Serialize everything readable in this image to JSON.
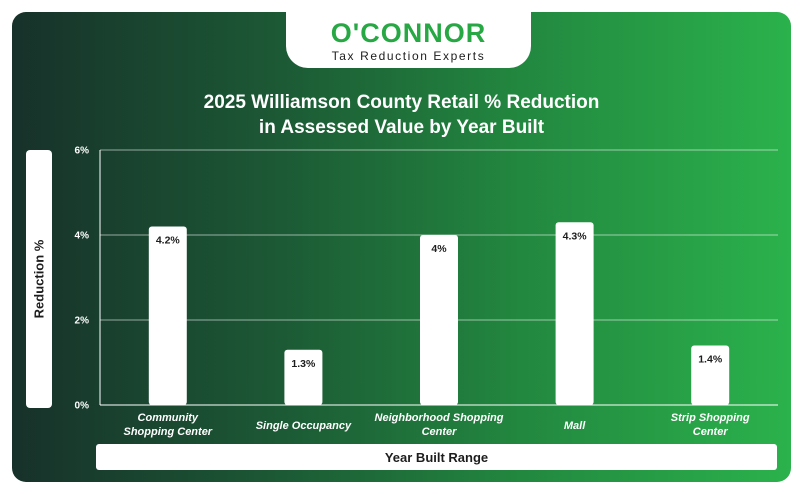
{
  "logo": {
    "name": "O'CONNOR",
    "tagline": "Tax Reduction Experts"
  },
  "colors": {
    "accent": "#27a844",
    "bar": "#ffffff",
    "text_dark": "#1d1d1d"
  },
  "chart_data": {
    "type": "bar",
    "title_line1": "2025 Williamson County Retail % Reduction",
    "title_line2": "in Assessed Value by Year Built",
    "xlabel": "Year Built Range",
    "ylabel": "Reduction %",
    "categories": [
      [
        "Community",
        "Shopping Center"
      ],
      [
        "Single Occupancy"
      ],
      [
        "Neighborhood Shopping",
        "Center"
      ],
      [
        "Mall"
      ],
      [
        "Strip Shopping",
        "Center"
      ]
    ],
    "values": [
      4.2,
      1.3,
      4.0,
      4.3,
      1.4
    ],
    "data_labels": [
      "4.2%",
      "1.3%",
      "4%",
      "4.3%",
      "1.4%"
    ],
    "ylim": [
      0,
      6
    ],
    "yticks": [
      0,
      2,
      4,
      6
    ],
    "ytick_labels": [
      "0%",
      "2%",
      "4%",
      "6%"
    ],
    "grid": true,
    "legend": "none"
  }
}
